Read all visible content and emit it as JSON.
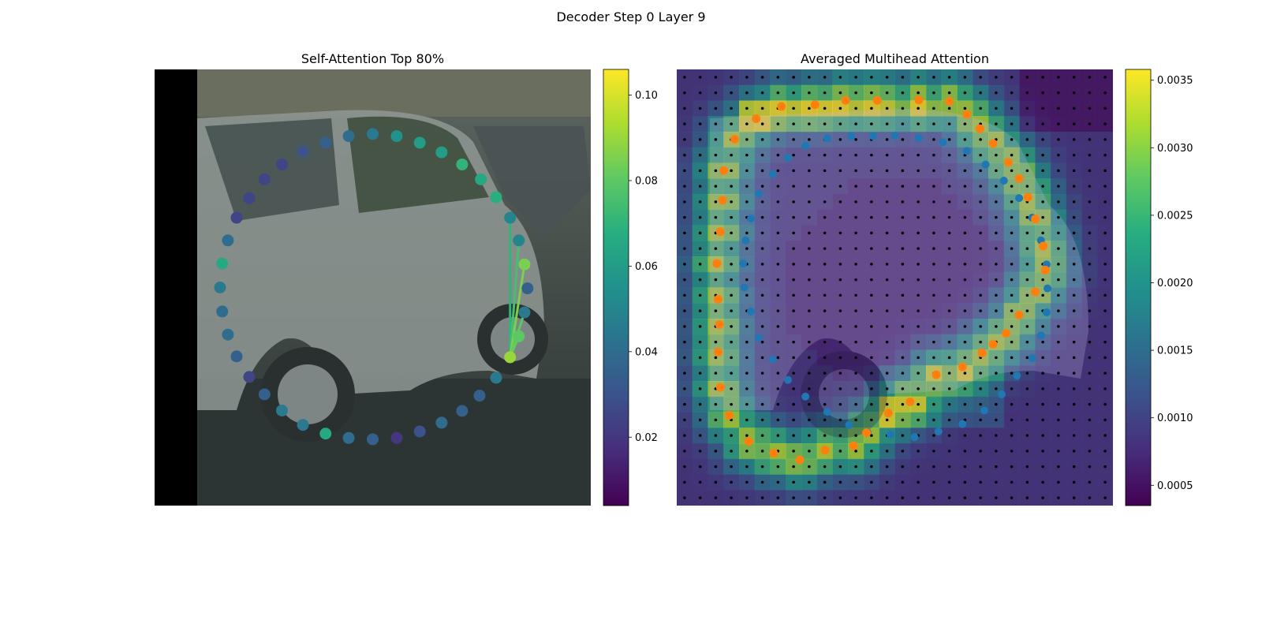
{
  "figure": {
    "title": "Decoder Step 0 Layer 9"
  },
  "chart_data": [
    {
      "type": "scatter",
      "title": "Self-Attention Top 80%",
      "description_of_background": "dashcam photo of a silver hatchback car",
      "colormap": "viridis",
      "colorbar": {
        "min": 0.004,
        "max": 0.106,
        "ticks": [
          0.02,
          0.04,
          0.06,
          0.08,
          0.1
        ],
        "tick_labels": [
          "0.02",
          "0.04",
          "0.06",
          "0.08",
          "0.10"
        ]
      },
      "x_range": [
        0,
        1
      ],
      "y_range": [
        0,
        1
      ],
      "points": [
        {
          "x": 0.5,
          "y": 0.148,
          "v": 0.045
        },
        {
          "x": 0.555,
          "y": 0.153,
          "v": 0.055
        },
        {
          "x": 0.608,
          "y": 0.168,
          "v": 0.06
        },
        {
          "x": 0.658,
          "y": 0.19,
          "v": 0.06
        },
        {
          "x": 0.705,
          "y": 0.218,
          "v": 0.07
        },
        {
          "x": 0.748,
          "y": 0.252,
          "v": 0.065
        },
        {
          "x": 0.783,
          "y": 0.293,
          "v": 0.068
        },
        {
          "x": 0.815,
          "y": 0.34,
          "v": 0.05
        },
        {
          "x": 0.835,
          "y": 0.392,
          "v": 0.05
        },
        {
          "x": 0.848,
          "y": 0.447,
          "v": 0.085
        },
        {
          "x": 0.855,
          "y": 0.502,
          "v": 0.035
        },
        {
          "x": 0.848,
          "y": 0.557,
          "v": 0.045
        },
        {
          "x": 0.835,
          "y": 0.612,
          "v": 0.08
        },
        {
          "x": 0.815,
          "y": 0.66,
          "v": 0.09
        },
        {
          "x": 0.783,
          "y": 0.707,
          "v": 0.045
        },
        {
          "x": 0.745,
          "y": 0.748,
          "v": 0.035
        },
        {
          "x": 0.705,
          "y": 0.783,
          "v": 0.035
        },
        {
          "x": 0.658,
          "y": 0.81,
          "v": 0.04
        },
        {
          "x": 0.608,
          "y": 0.83,
          "v": 0.03
        },
        {
          "x": 0.555,
          "y": 0.845,
          "v": 0.02
        },
        {
          "x": 0.5,
          "y": 0.848,
          "v": 0.035
        },
        {
          "x": 0.445,
          "y": 0.845,
          "v": 0.04
        },
        {
          "x": 0.392,
          "y": 0.835,
          "v": 0.065
        },
        {
          "x": 0.34,
          "y": 0.815,
          "v": 0.045
        },
        {
          "x": 0.292,
          "y": 0.782,
          "v": 0.045
        },
        {
          "x": 0.252,
          "y": 0.745,
          "v": 0.035
        },
        {
          "x": 0.217,
          "y": 0.705,
          "v": 0.025
        },
        {
          "x": 0.188,
          "y": 0.658,
          "v": 0.035
        },
        {
          "x": 0.168,
          "y": 0.608,
          "v": 0.04
        },
        {
          "x": 0.155,
          "y": 0.555,
          "v": 0.04
        },
        {
          "x": 0.15,
          "y": 0.5,
          "v": 0.045
        },
        {
          "x": 0.155,
          "y": 0.445,
          "v": 0.065
        },
        {
          "x": 0.168,
          "y": 0.392,
          "v": 0.04
        },
        {
          "x": 0.188,
          "y": 0.34,
          "v": 0.025
        },
        {
          "x": 0.217,
          "y": 0.295,
          "v": 0.025
        },
        {
          "x": 0.252,
          "y": 0.252,
          "v": 0.025
        },
        {
          "x": 0.292,
          "y": 0.218,
          "v": 0.025
        },
        {
          "x": 0.34,
          "y": 0.188,
          "v": 0.03
        },
        {
          "x": 0.392,
          "y": 0.168,
          "v": 0.035
        },
        {
          "x": 0.445,
          "y": 0.153,
          "v": 0.04
        }
      ],
      "attention_lines": [
        {
          "from": 13,
          "to": 7,
          "v": 0.07
        },
        {
          "from": 13,
          "to": 8,
          "v": 0.075
        },
        {
          "from": 13,
          "to": 9,
          "v": 0.085
        },
        {
          "from": 13,
          "to": 11,
          "v": 0.08
        },
        {
          "from": 13,
          "to": 12,
          "v": 0.082
        }
      ]
    },
    {
      "type": "heatmap",
      "title": "Averaged Multihead Attention",
      "description_of_background": "same car photo overlaid with attention heatmap",
      "colormap": "viridis",
      "colorbar": {
        "min": 0.00035,
        "max": 0.00358,
        "ticks": [
          0.0005,
          0.001,
          0.0015,
          0.002,
          0.0025,
          0.003,
          0.0035
        ],
        "tick_labels": [
          "0.0005",
          "0.0010",
          "0.0015",
          "0.0020",
          "0.0025",
          "0.0030",
          "0.0035"
        ]
      },
      "grid_size": 28,
      "blue_points": [
        {
          "x": 0.5,
          "y": 0.152
        },
        {
          "x": 0.555,
          "y": 0.157
        },
        {
          "x": 0.61,
          "y": 0.167
        },
        {
          "x": 0.665,
          "y": 0.187
        },
        {
          "x": 0.708,
          "y": 0.218
        },
        {
          "x": 0.75,
          "y": 0.255
        },
        {
          "x": 0.785,
          "y": 0.295
        },
        {
          "x": 0.815,
          "y": 0.34
        },
        {
          "x": 0.835,
          "y": 0.392
        },
        {
          "x": 0.848,
          "y": 0.447
        },
        {
          "x": 0.85,
          "y": 0.502
        },
        {
          "x": 0.848,
          "y": 0.557
        },
        {
          "x": 0.835,
          "y": 0.61
        },
        {
          "x": 0.815,
          "y": 0.662
        },
        {
          "x": 0.78,
          "y": 0.702
        },
        {
          "x": 0.745,
          "y": 0.745
        },
        {
          "x": 0.705,
          "y": 0.782
        },
        {
          "x": 0.655,
          "y": 0.813
        },
        {
          "x": 0.6,
          "y": 0.83
        },
        {
          "x": 0.545,
          "y": 0.843
        },
        {
          "x": 0.49,
          "y": 0.837
        },
        {
          "x": 0.437,
          "y": 0.832
        },
        {
          "x": 0.395,
          "y": 0.815
        },
        {
          "x": 0.345,
          "y": 0.785
        },
        {
          "x": 0.295,
          "y": 0.75
        },
        {
          "x": 0.255,
          "y": 0.712
        },
        {
          "x": 0.22,
          "y": 0.665
        },
        {
          "x": 0.188,
          "y": 0.615
        },
        {
          "x": 0.17,
          "y": 0.555
        },
        {
          "x": 0.155,
          "y": 0.5
        },
        {
          "x": 0.152,
          "y": 0.445
        },
        {
          "x": 0.158,
          "y": 0.392
        },
        {
          "x": 0.17,
          "y": 0.342
        },
        {
          "x": 0.188,
          "y": 0.285
        },
        {
          "x": 0.22,
          "y": 0.24
        },
        {
          "x": 0.255,
          "y": 0.203
        },
        {
          "x": 0.295,
          "y": 0.175
        },
        {
          "x": 0.345,
          "y": 0.158
        },
        {
          "x": 0.4,
          "y": 0.153
        },
        {
          "x": 0.45,
          "y": 0.153
        }
      ],
      "orange_points": [
        {
          "x": 0.555,
          "y": 0.07
        },
        {
          "x": 0.625,
          "y": 0.073
        },
        {
          "x": 0.665,
          "y": 0.103
        },
        {
          "x": 0.695,
          "y": 0.136
        },
        {
          "x": 0.725,
          "y": 0.17
        },
        {
          "x": 0.76,
          "y": 0.213
        },
        {
          "x": 0.785,
          "y": 0.25
        },
        {
          "x": 0.805,
          "y": 0.293
        },
        {
          "x": 0.822,
          "y": 0.343
        },
        {
          "x": 0.84,
          "y": 0.405
        },
        {
          "x": 0.845,
          "y": 0.46
        },
        {
          "x": 0.822,
          "y": 0.51
        },
        {
          "x": 0.785,
          "y": 0.563
        },
        {
          "x": 0.755,
          "y": 0.605
        },
        {
          "x": 0.725,
          "y": 0.63
        },
        {
          "x": 0.7,
          "y": 0.65
        },
        {
          "x": 0.655,
          "y": 0.682
        },
        {
          "x": 0.595,
          "y": 0.7
        },
        {
          "x": 0.535,
          "y": 0.762
        },
        {
          "x": 0.485,
          "y": 0.788
        },
        {
          "x": 0.435,
          "y": 0.833
        },
        {
          "x": 0.405,
          "y": 0.863
        },
        {
          "x": 0.34,
          "y": 0.873
        },
        {
          "x": 0.282,
          "y": 0.895
        },
        {
          "x": 0.222,
          "y": 0.88
        },
        {
          "x": 0.165,
          "y": 0.853
        },
        {
          "x": 0.12,
          "y": 0.793
        },
        {
          "x": 0.1,
          "y": 0.729
        },
        {
          "x": 0.095,
          "y": 0.648
        },
        {
          "x": 0.098,
          "y": 0.585
        },
        {
          "x": 0.095,
          "y": 0.527
        },
        {
          "x": 0.092,
          "y": 0.445
        },
        {
          "x": 0.1,
          "y": 0.372
        },
        {
          "x": 0.105,
          "y": 0.3
        },
        {
          "x": 0.108,
          "y": 0.232
        },
        {
          "x": 0.133,
          "y": 0.16
        },
        {
          "x": 0.182,
          "y": 0.113
        },
        {
          "x": 0.24,
          "y": 0.085
        },
        {
          "x": 0.317,
          "y": 0.081
        },
        {
          "x": 0.387,
          "y": 0.071
        },
        {
          "x": 0.46,
          "y": 0.071
        }
      ]
    }
  ]
}
